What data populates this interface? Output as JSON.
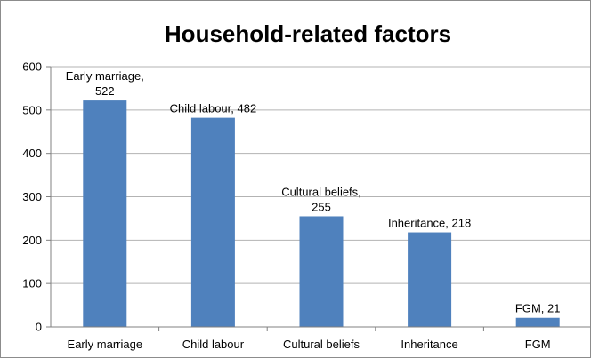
{
  "chart_data": {
    "type": "bar",
    "title": "Household-related factors",
    "xlabel": "",
    "ylabel": "",
    "categories": [
      "Early marriage",
      "Child labour",
      "Cultural beliefs",
      "Inheritance",
      "FGM"
    ],
    "values": [
      522,
      482,
      255,
      218,
      21
    ],
    "data_labels": [
      [
        "Early marriage,",
        "522"
      ],
      [
        "Child labour, 482"
      ],
      [
        "Cultural beliefs,",
        "255"
      ],
      [
        "Inheritance, 218"
      ],
      [
        "FGM, 21"
      ]
    ],
    "ylim": [
      0,
      600
    ],
    "yticks": [
      "0",
      "100",
      "200",
      "300",
      "400",
      "500",
      "600"
    ],
    "ytick_values": [
      0,
      100,
      200,
      300,
      400,
      500,
      600
    ],
    "grid": true,
    "legend": "none",
    "colors": {
      "bar": "#4f81bd",
      "gridline": "#b3b3b3",
      "axis": "#808080"
    }
  }
}
